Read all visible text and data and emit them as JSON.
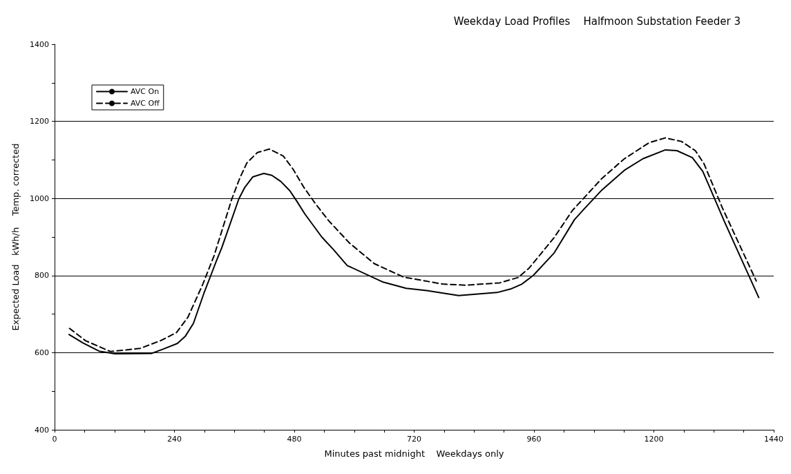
{
  "chart_data": {
    "type": "line",
    "title": "Weekday Load Profiles    Halfmoon Substation Feeder 3",
    "xlabel": "Minutes past midnight    Weekdays only",
    "ylabel": "Expected Load   kWh/h    Temp. corrected",
    "xlim": [
      0,
      1440
    ],
    "xticks": [
      0,
      {
        "value": 60,
        "label": null
      },
      {
        "value": 120,
        "label": null
      },
      {
        "value": 180,
        "label": null
      },
      240,
      {
        "value": 300,
        "label": null
      },
      {
        "value": 360,
        "label": null
      },
      {
        "value": 420,
        "label": null
      },
      480,
      {
        "value": 540,
        "label": null
      },
      {
        "value": 600,
        "label": null
      },
      {
        "value": 660,
        "label": null
      },
      720,
      {
        "value": 780,
        "label": null
      },
      {
        "value": 840,
        "label": null
      },
      {
        "value": 900,
        "label": null
      },
      960,
      {
        "value": 1020,
        "label": null
      },
      {
        "value": 1080,
        "label": null
      },
      {
        "value": 1140,
        "label": null
      },
      1200,
      {
        "value": 1260,
        "label": null
      },
      {
        "value": 1320,
        "label": null
      },
      {
        "value": 1380,
        "label": null
      },
      1440
    ],
    "ylim": [
      400,
      1400
    ],
    "yticks": [
      400,
      {
        "value": 500,
        "label": null
      },
      600,
      {
        "value": 700,
        "label": null
      },
      800,
      {
        "value": 900,
        "label": null
      },
      1000,
      {
        "value": 1100,
        "label": null
      },
      1200,
      {
        "value": 1300,
        "label": null
      },
      1400
    ],
    "grid": "y",
    "legend": "top left",
    "marker": "none",
    "series": [
      {
        "name": "AVC On",
        "color": "#000000",
        "line_style": "solid",
        "x": [
          29,
          57,
          89,
          121,
          194,
          217,
          246,
          262,
          278,
          299,
          313,
          324,
          335,
          369,
          381,
          397,
          419,
          435,
          453,
          471,
          485,
          501,
          535,
          558,
          586,
          658,
          704,
          745,
          809,
          886,
          913,
          936,
          959,
          1000,
          1041,
          1062,
          1096,
          1141,
          1178,
          1223,
          1246,
          1277,
          1298,
          1310,
          1342,
          1410
        ],
        "values": [
          647,
          625,
          604,
          597,
          598,
          609,
          624,
          643,
          676,
          754,
          801,
          838,
          873,
          999,
          1029,
          1056,
          1065,
          1060,
          1044,
          1020,
          993,
          960,
          900,
          868,
          826,
          783,
          767,
          761,
          748,
          756,
          765,
          778,
          801,
          858,
          945,
          975,
          1022,
          1073,
          1103,
          1126,
          1124,
          1106,
          1070,
          1034,
          938,
          743
        ]
      },
      {
        "name": "AVC Off",
        "color": "#000000",
        "line_style": "dashed",
        "x": [
          30,
          62,
          112,
          171,
          212,
          244,
          267,
          296,
          319,
          355,
          371,
          385,
          406,
          430,
          458,
          477,
          499,
          522,
          549,
          590,
          640,
          699,
          777,
          822,
          891,
          928,
          950,
          1000,
          1037,
          1096,
          1141,
          1191,
          1223,
          1255,
          1283,
          1300,
          1337,
          1405
        ],
        "values": [
          663,
          631,
          603,
          611,
          631,
          652,
          692,
          775,
          850,
          999,
          1053,
          1092,
          1119,
          1128,
          1110,
          1077,
          1029,
          987,
          942,
          885,
          831,
          796,
          778,
          775,
          781,
          795,
          819,
          898,
          969,
          1052,
          1103,
          1145,
          1157,
          1148,
          1124,
          1091,
          976,
          786
        ]
      }
    ]
  }
}
